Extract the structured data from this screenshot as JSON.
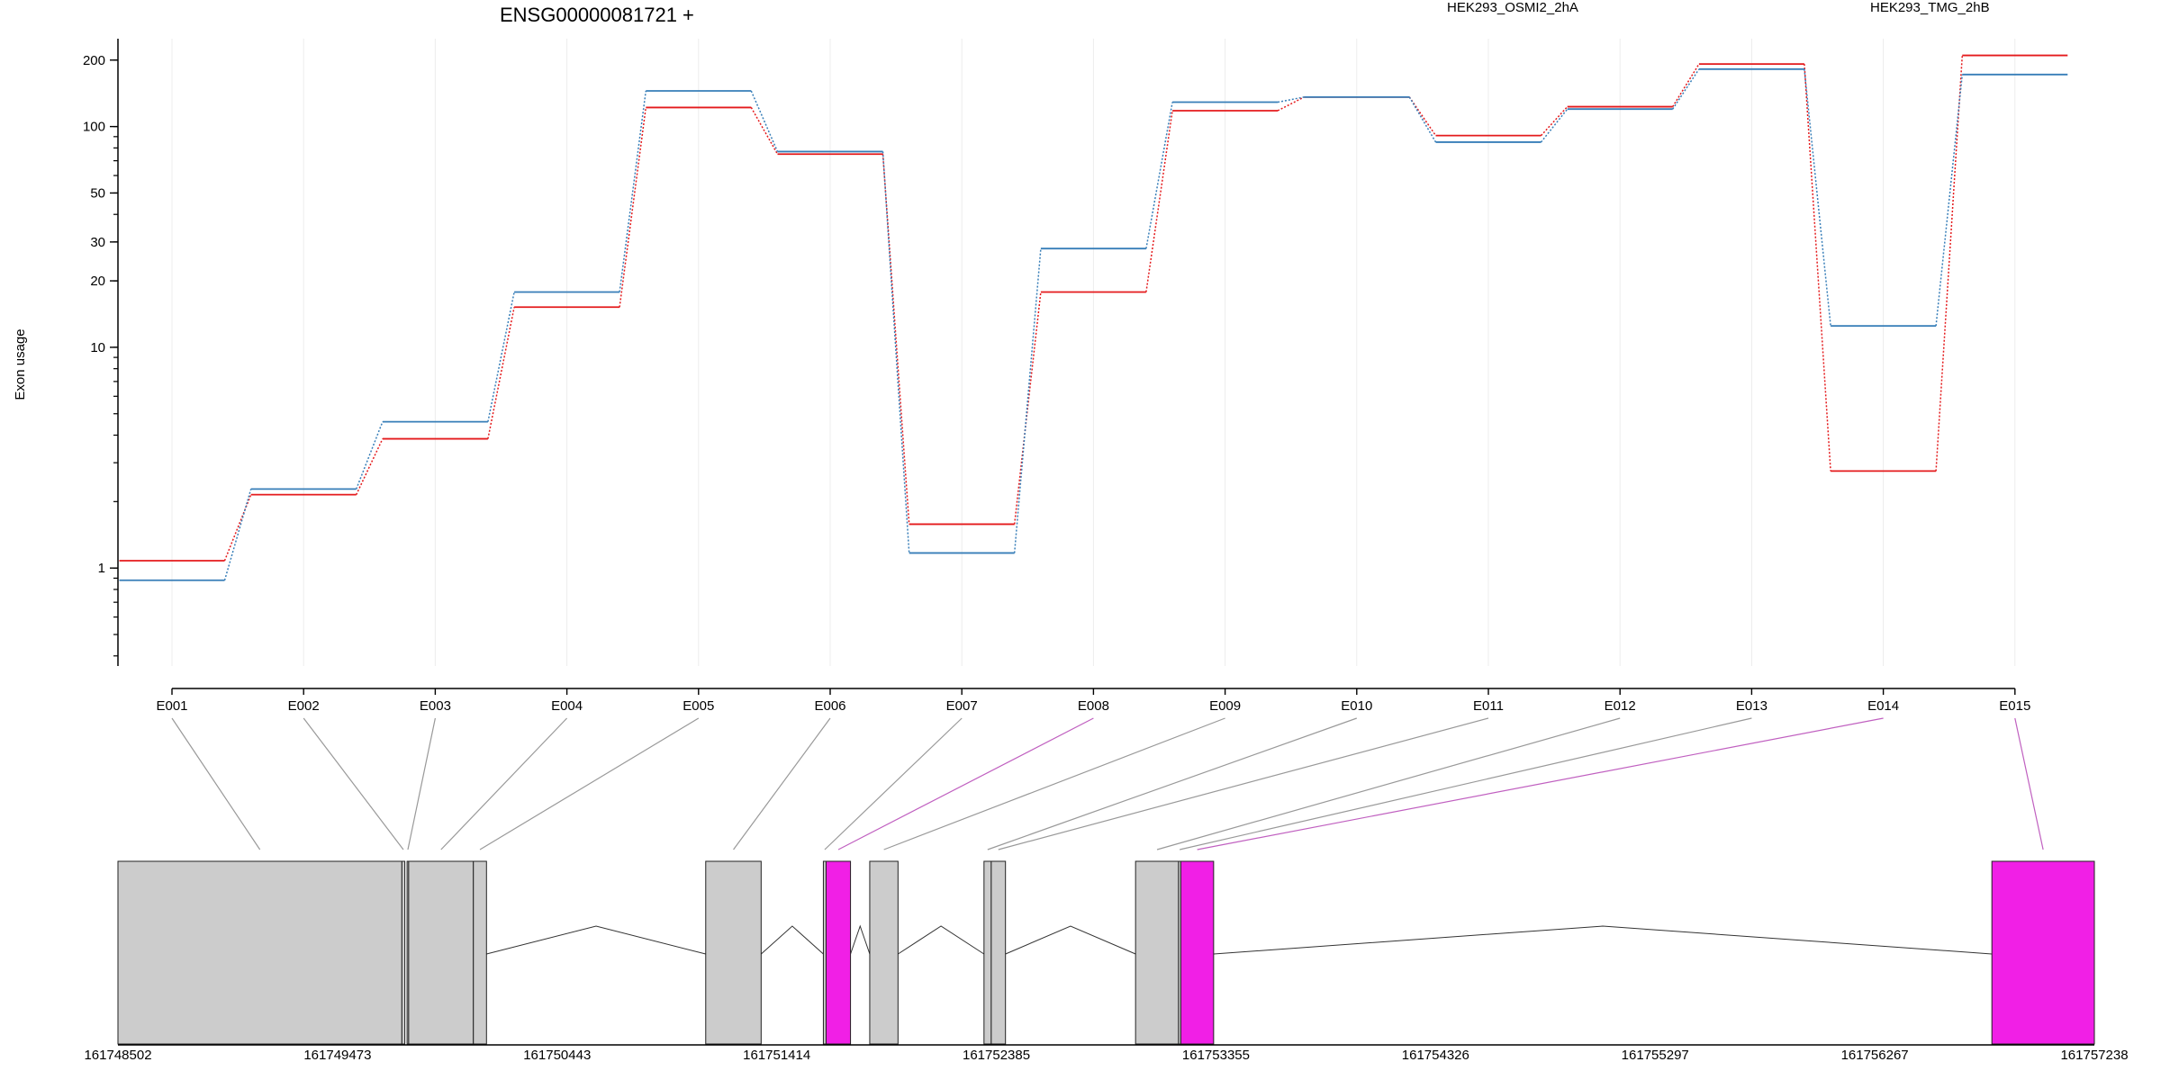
{
  "chart_data": {
    "type": "line",
    "title": "ENSG00000081721 +",
    "ylabel": "Exon usage",
    "xlabel": "",
    "y_scale": "log",
    "ylim": [
      0.36,
      250
    ],
    "y_ticks": [
      1,
      10,
      20,
      30,
      50,
      100,
      200
    ],
    "legend_placement": "top",
    "grid": "vertical only",
    "categories": [
      "E001",
      "E002",
      "E003",
      "E004",
      "E005",
      "E006",
      "E007",
      "E008",
      "E009",
      "E010",
      "E011",
      "E012",
      "E013",
      "E014",
      "E015"
    ],
    "series": [
      {
        "name": "HEK293_OSMI2_2hA",
        "color": "#e41a1c",
        "values": [
          1.08,
          2.15,
          3.85,
          15.2,
          122,
          75,
          1.58,
          17.8,
          118,
          136,
          91,
          123,
          192,
          2.75,
          210
        ]
      },
      {
        "name": "HEK293_TMG_2hB",
        "color": "#377eb8",
        "values": [
          0.88,
          2.28,
          4.6,
          17.8,
          145,
          77,
          1.17,
          28,
          129,
          136,
          85,
          120,
          182,
          12.5,
          172
        ]
      }
    ],
    "gene_model": {
      "genomic_ticks": [
        "161748502",
        "161749473",
        "161750443",
        "161751414",
        "161752385",
        "161753355",
        "161754326",
        "161755297",
        "161756267",
        "161757238"
      ],
      "genomic_range": [
        161748502,
        161757238
      ],
      "highlight_color": "#f11fe6",
      "exon_color": "#cccccc",
      "exons": [
        {
          "id": "E001",
          "start": 161748502,
          "end": 161749757,
          "highlight": false
        },
        {
          "id": "E002",
          "start": 161749757,
          "end": 161749770,
          "highlight": false
        },
        {
          "id": "E003",
          "start": 161749780,
          "end": 161749787,
          "highlight": false
        },
        {
          "id": "E004",
          "start": 161749787,
          "end": 161750073,
          "highlight": false
        },
        {
          "id": "E005",
          "start": 161750073,
          "end": 161750131,
          "highlight": false
        },
        {
          "id": "E006",
          "start": 161751100,
          "end": 161751345,
          "highlight": false
        },
        {
          "id": "E007",
          "start": 161751620,
          "end": 161751632,
          "highlight": false
        },
        {
          "id": "E008",
          "start": 161751632,
          "end": 161751740,
          "highlight": true
        },
        {
          "id": "E009",
          "start": 161751825,
          "end": 161751950,
          "highlight": false
        },
        {
          "id": "E010",
          "start": 161752330,
          "end": 161752362,
          "highlight": false
        },
        {
          "id": "E011",
          "start": 161752362,
          "end": 161752425,
          "highlight": false
        },
        {
          "id": "E012",
          "start": 161753000,
          "end": 161753190,
          "highlight": false
        },
        {
          "id": "E013",
          "start": 161753190,
          "end": 161753200,
          "highlight": false
        },
        {
          "id": "E014",
          "start": 161753200,
          "end": 161753345,
          "highlight": true
        },
        {
          "id": "E015",
          "start": 161756785,
          "end": 161757238,
          "highlight": true
        }
      ]
    }
  }
}
